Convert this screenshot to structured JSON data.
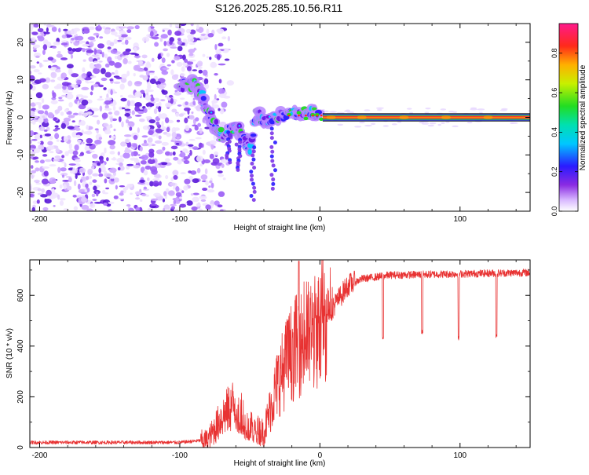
{
  "title": "S126.2025.285.10.56.R11",
  "colors": {
    "snr_line": "#e83232",
    "axis": "#000000",
    "background": "#ffffff",
    "carrier_band": [
      "#1a2fe0",
      "#2fd12f",
      "#ff1a1a",
      "#ff8a00",
      "#ff1a1a",
      "#2fd12f",
      "#1a2fe0"
    ]
  },
  "chart_data": [
    {
      "id": "spectrogram",
      "type": "heatmap",
      "xlabel": "Height of straight line (km)",
      "ylabel": "Frequency (Hz)",
      "xlim": [
        -207,
        150
      ],
      "ylim": [
        -25,
        25
      ],
      "xticks": [
        -200,
        -100,
        0,
        100
      ],
      "xtick_labels": [
        "-200",
        "-100",
        "0",
        "100"
      ],
      "yticks": [
        20,
        10,
        0,
        -10,
        -20
      ],
      "ytick_labels": [
        "20",
        "10",
        "0",
        "-10",
        "-20"
      ],
      "carrier": {
        "x_start": 2,
        "x_end": 150,
        "freq": 0.0,
        "amplitude": 0.9
      },
      "signal_trace": [
        {
          "x": -100,
          "f": 8
        },
        {
          "x": -90,
          "f": 9
        },
        {
          "x": -85,
          "f": 6
        },
        {
          "x": -80,
          "f": 2
        },
        {
          "x": -75,
          "f": -2
        },
        {
          "x": -70,
          "f": -5
        },
        {
          "x": -60,
          "f": -2
        },
        {
          "x": -55,
          "f": -5
        },
        {
          "x": -50,
          "f": -8
        },
        {
          "x": -45,
          "f": 1
        },
        {
          "x": -40,
          "f": -1
        },
        {
          "x": -30,
          "f": 0
        },
        {
          "x": -20,
          "f": 1
        },
        {
          "x": -10,
          "f": 2
        },
        {
          "x": 0,
          "f": 1
        }
      ],
      "noise_region": {
        "x_start": -207,
        "x_end": -85,
        "density": "high"
      },
      "colorbar": {
        "label": "Normalized spectral amplitude",
        "range": [
          0.0,
          0.95
        ],
        "ticks": [
          0.0,
          0.2,
          0.4,
          0.6,
          0.8
        ],
        "tick_labels": [
          "0.0",
          "0.2",
          "0.4",
          "0.6",
          "0.8"
        ],
        "colormap": "rainbow (white→violet→blue→cyan→green→yellow→orange→red→magenta)"
      }
    },
    {
      "id": "snr",
      "type": "line",
      "xlabel": "Height of straight line (km)",
      "ylabel": "SNR (10 * v/v)",
      "xlim": [
        -207,
        150
      ],
      "ylim": [
        0,
        740
      ],
      "xticks": [
        -200,
        -100,
        0,
        100
      ],
      "xtick_labels": [
        "-200",
        "-100",
        "0",
        "100"
      ],
      "yticks": [
        0,
        200,
        400,
        600
      ],
      "ytick_labels": [
        "0",
        "200",
        "400",
        "600"
      ],
      "trend": [
        {
          "x": -207,
          "y": 20
        },
        {
          "x": -100,
          "y": 20
        },
        {
          "x": -80,
          "y": 30
        },
        {
          "x": -70,
          "y": 120
        },
        {
          "x": -60,
          "y": 180
        },
        {
          "x": -50,
          "y": 80
        },
        {
          "x": -40,
          "y": 60
        },
        {
          "x": -30,
          "y": 260
        },
        {
          "x": -20,
          "y": 380
        },
        {
          "x": -10,
          "y": 430
        },
        {
          "x": 0,
          "y": 470
        },
        {
          "x": 10,
          "y": 560
        },
        {
          "x": 20,
          "y": 640
        },
        {
          "x": 30,
          "y": 665
        },
        {
          "x": 50,
          "y": 680
        },
        {
          "x": 150,
          "y": 690
        }
      ],
      "dips": [
        {
          "x": 45,
          "y": 425
        },
        {
          "x": 73,
          "y": 445
        },
        {
          "x": 99,
          "y": 420
        },
        {
          "x": 126,
          "y": 430
        }
      ],
      "peak": {
        "x": -15,
        "y": 735
      }
    }
  ]
}
